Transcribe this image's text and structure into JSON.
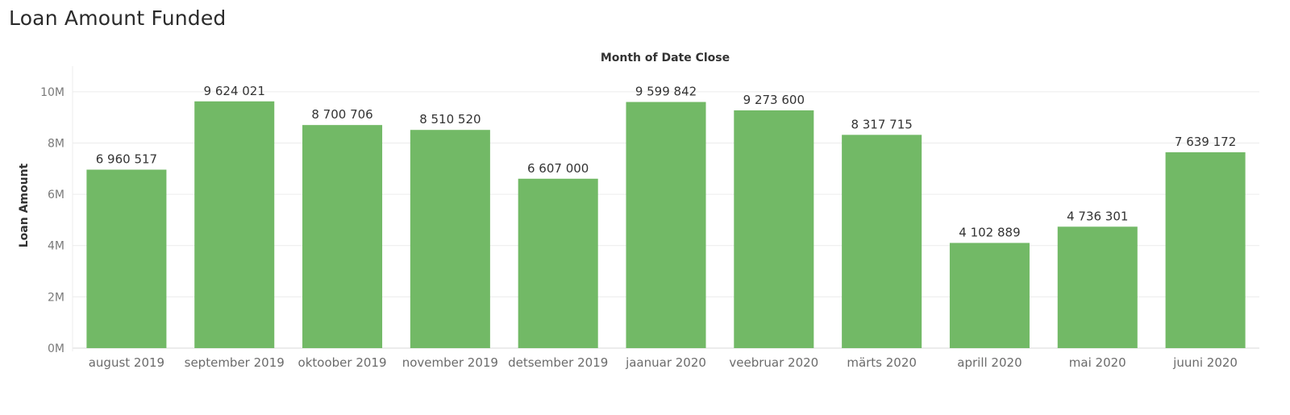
{
  "title": "Loan Amount Funded",
  "colors": {
    "bar": "#72b966",
    "gridline": "#ececec",
    "axis": "#d8d8d8"
  },
  "chart_data": {
    "type": "bar",
    "xlabel": "Month of Date Close",
    "ylabel": "Loan Amount",
    "ylim": [
      0,
      11000000
    ],
    "yticks": [
      {
        "value": 0,
        "label": "0M"
      },
      {
        "value": 2000000,
        "label": "2M"
      },
      {
        "value": 4000000,
        "label": "4M"
      },
      {
        "value": 6000000,
        "label": "6M"
      },
      {
        "value": 8000000,
        "label": "8M"
      },
      {
        "value": 10000000,
        "label": "10M"
      }
    ],
    "grid": true,
    "categories": [
      "august 2019",
      "september 2019",
      "oktoober 2019",
      "november 2019",
      "detsember 2019",
      "jaanuar 2020",
      "veebruar 2020",
      "märts 2020",
      "aprill 2020",
      "mai 2020",
      "juuni 2020"
    ],
    "values": [
      6960517,
      9624021,
      8700706,
      8510520,
      6607000,
      9599842,
      9273600,
      8317715,
      4102889,
      4736301,
      7639172
    ],
    "data_labels": [
      "6 960 517",
      "9 624 021",
      "8 700 706",
      "8 510 520",
      "6 607 000",
      "9 599 842",
      "9 273 600",
      "8 317 715",
      "4 102 889",
      "4 736 301",
      "7 639 172"
    ]
  }
}
